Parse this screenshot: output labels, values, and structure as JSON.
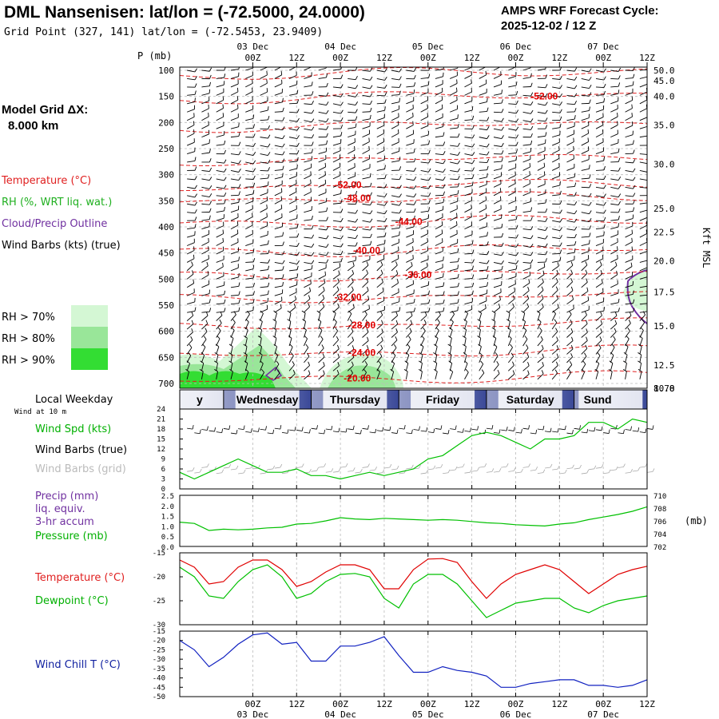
{
  "header": {
    "title": "DML Nansenisen:  lat/lon = (-72.5000, 24.0000)",
    "subtitle": "Grid Point (327, 141) lat/lon = (-72.5453, 23.9409)",
    "cycle_line1": "AMPS WRF Forecast Cycle:",
    "cycle_line2": "2025-12-02 / 12  Z"
  },
  "sidebar": {
    "model_grid_line1": "Model Grid ΔX:",
    "model_grid_line2": "8.000 km",
    "legend": [
      {
        "text": "Temperature (°C)",
        "color": "#e02020"
      },
      {
        "text": "RH (%, WRT liq. wat.)",
        "color": "#20b020"
      },
      {
        "text": "Cloud/Precip Outline",
        "color": "#7030a0"
      },
      {
        "text": "Wind Barbs (kts) (true)",
        "color": "#000000"
      }
    ],
    "rh_legend": [
      {
        "text": "RH > 70%",
        "color": "#d4f7d4"
      },
      {
        "text": "RH > 80%",
        "color": "#99e699"
      },
      {
        "text": "RH > 90%",
        "color": "#33dd33"
      }
    ]
  },
  "time_axis": {
    "ticks": [
      "00Z",
      "12Z",
      "00Z",
      "12Z",
      "00Z",
      "12Z",
      "00Z",
      "12Z",
      "00Z",
      "12Z"
    ],
    "dates": [
      "03 Dec",
      "04 Dec",
      "05 Dec",
      "06 Dec",
      "07 Dec"
    ],
    "forecast_hours_start": 0,
    "forecast_hours_end": 120
  },
  "weekday_strip": {
    "label": "Local Weekday",
    "days": [
      "y",
      "Wednesday",
      "Thursday",
      "Friday",
      "Saturday",
      "Sund"
    ]
  },
  "chart_data": [
    {
      "type": "contour",
      "name": "upper_air",
      "y_title": "P (mb)",
      "right_title": "Kft MSL",
      "pressure_ticks": [
        100,
        150,
        200,
        250,
        300,
        350,
        400,
        450,
        500,
        550,
        600,
        650,
        700
      ],
      "kft_ticks": [
        "50.0",
        "45.0",
        "40.0",
        "35.0",
        "30.0",
        "25.0",
        "22.5",
        "20.0",
        "17.5",
        "15.0",
        "12.5",
        "10.0",
        "8.78"
      ],
      "kft_pressure": [
        100,
        120,
        150,
        205,
        280,
        365,
        410,
        465,
        525,
        590,
        665,
        745,
        790
      ],
      "temperature_contours": [
        {
          "label": "-52.00",
          "t": 0.78,
          "p": 150
        },
        {
          "label": "-52.00",
          "t": 0.36,
          "p": 320
        },
        {
          "label": "-48.00",
          "t": 0.38,
          "p": 345
        },
        {
          "label": "-44.00",
          "t": 0.49,
          "p": 390
        },
        {
          "label": "-40.00",
          "t": 0.4,
          "p": 445
        },
        {
          "label": "-36.00",
          "t": 0.51,
          "p": 492
        },
        {
          "label": "-32.00",
          "t": 0.36,
          "p": 535
        },
        {
          "label": "-28.00",
          "t": 0.39,
          "p": 588
        },
        {
          "label": "-24.00",
          "t": 0.39,
          "p": 641
        },
        {
          "label": "-20.00",
          "t": 0.38,
          "p": 690
        }
      ]
    },
    {
      "type": "line",
      "name": "wind_speed",
      "labels": [
        "Wind at 10 m",
        "Wind Spd (kts)",
        "Wind Barbs (true)",
        "Wind Barbs (grid)"
      ],
      "yticks": [
        0,
        3,
        6,
        9,
        12,
        15,
        18,
        21,
        24
      ],
      "ylim": [
        0,
        24
      ],
      "x": [
        -8,
        -4,
        0,
        4,
        8,
        12,
        16,
        20,
        24,
        28,
        32,
        36,
        40,
        44,
        48,
        52,
        56,
        60,
        64,
        68,
        72,
        76,
        80,
        84,
        88,
        92,
        96,
        100,
        104,
        108,
        112,
        116,
        120
      ],
      "values": [
        5,
        3,
        5,
        7,
        9,
        7,
        5,
        5,
        6,
        4,
        4,
        3,
        4,
        5,
        4,
        5,
        6,
        9,
        10,
        13,
        16,
        17,
        16,
        14,
        12,
        15,
        15,
        16,
        20,
        20,
        18,
        21,
        20
      ]
    },
    {
      "type": "line",
      "name": "pressure",
      "labels": [
        "Precip (mm)",
        "liq. equiv.",
        "3-hr accum",
        "Pressure (mb)"
      ],
      "precip_ticks": [
        "2.5",
        "2.0",
        "1.5",
        "1.0",
        "0.5",
        "0.0"
      ],
      "pressure_ticks": [
        "710",
        "708",
        "706",
        "704",
        "702"
      ],
      "unit": "(mb)",
      "ylim": [
        702,
        710
      ],
      "x": [
        -8,
        -4,
        0,
        4,
        8,
        12,
        16,
        20,
        24,
        28,
        32,
        36,
        40,
        44,
        48,
        52,
        56,
        60,
        64,
        68,
        72,
        76,
        80,
        84,
        88,
        92,
        96,
        100,
        104,
        108,
        112,
        116,
        120
      ],
      "values": [
        705.8,
        705.6,
        704.5,
        704.7,
        704.6,
        704.7,
        704.9,
        705.0,
        705.5,
        705.6,
        706.0,
        706.5,
        706.3,
        706.2,
        706.4,
        706.3,
        706.2,
        706.1,
        706.2,
        706.1,
        705.9,
        705.7,
        705.6,
        705.4,
        705.3,
        705.2,
        705.5,
        705.7,
        706.2,
        706.6,
        707.0,
        707.5,
        708.2
      ]
    },
    {
      "type": "line",
      "name": "temperature",
      "labels": [
        "Temperature (°C)",
        "Dewpoint (°C)"
      ],
      "yticks": [
        -15,
        -20,
        -25,
        -30
      ],
      "ylim": [
        -30,
        -15
      ],
      "series": [
        {
          "name": "Temperature (°C)",
          "color": "#e00000",
          "x": [
            -8,
            -4,
            0,
            4,
            8,
            12,
            16,
            20,
            24,
            28,
            32,
            36,
            40,
            44,
            48,
            52,
            56,
            60,
            64,
            68,
            72,
            76,
            80,
            84,
            88,
            92,
            96,
            100,
            104,
            108,
            112,
            116,
            120
          ],
          "values": [
            -16.5,
            -18,
            -21.5,
            -21,
            -18,
            -16.5,
            -16.5,
            -18.5,
            -22,
            -21,
            -19,
            -17.5,
            -17.5,
            -18.5,
            -22.5,
            -22.5,
            -18.5,
            -16.3,
            -16.2,
            -17,
            -21,
            -24.5,
            -21.5,
            -19.5,
            -18.5,
            -17.5,
            -18.5,
            -21,
            -23.5,
            -21.5,
            -19.5,
            -18.5,
            -17.8
          ]
        },
        {
          "name": "Dewpoint (°C)",
          "color": "#00c000",
          "x": [
            -8,
            -4,
            0,
            4,
            8,
            12,
            16,
            20,
            24,
            28,
            32,
            36,
            40,
            44,
            48,
            52,
            56,
            60,
            64,
            68,
            72,
            76,
            80,
            84,
            88,
            92,
            96,
            100,
            104,
            108,
            112,
            116,
            120
          ],
          "values": [
            -18,
            -20,
            -24,
            -24.5,
            -21,
            -18.5,
            -17.5,
            -20,
            -24.5,
            -23.5,
            -21,
            -19.5,
            -19.3,
            -20,
            -24.5,
            -26.5,
            -21.5,
            -19.5,
            -19.5,
            -21.5,
            -25,
            -28.5,
            -27,
            -25.5,
            -25,
            -24.5,
            -24.5,
            -26.5,
            -27.5,
            -26,
            -25,
            -24.5,
            -24
          ]
        }
      ]
    },
    {
      "type": "line",
      "name": "wind_chill",
      "labels": [
        "Wind Chill T (°C)"
      ],
      "yticks": [
        -15,
        -20,
        -25,
        -30,
        -35,
        -40,
        -45,
        -50
      ],
      "ylim": [
        -50,
        -15
      ],
      "x": [
        -8,
        -4,
        0,
        4,
        8,
        12,
        16,
        20,
        24,
        28,
        32,
        36,
        40,
        44,
        48,
        52,
        56,
        60,
        64,
        68,
        72,
        76,
        80,
        84,
        88,
        92,
        96,
        100,
        104,
        108,
        112,
        116,
        120
      ],
      "values": [
        -20,
        -25,
        -34,
        -29,
        -22,
        -17,
        -16,
        -22,
        -21,
        -31,
        -31,
        -23,
        -23,
        -21,
        -18,
        -28,
        -37,
        -37,
        -34,
        -36,
        -37,
        -39,
        -45,
        -45,
        -43,
        -42,
        -41,
        -41,
        -44,
        -44,
        -45,
        -44,
        -41
      ]
    }
  ]
}
